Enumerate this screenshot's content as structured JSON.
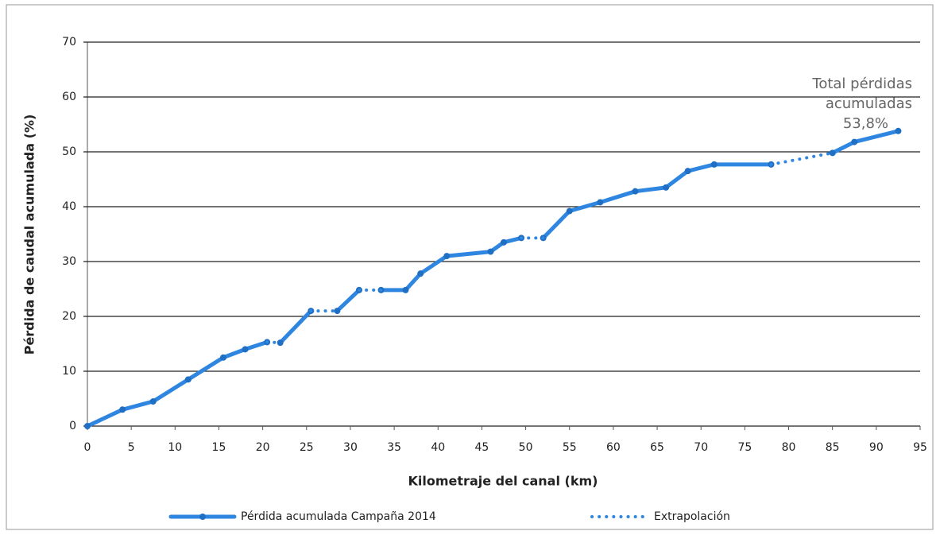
{
  "chart_data": {
    "type": "line",
    "xlabel": "Kilometraje del canal (km)",
    "ylabel": "Pérdida de caudal acumulada (%)",
    "xlim": [
      0,
      95
    ],
    "xticks": [
      0,
      5,
      10,
      15,
      20,
      25,
      30,
      35,
      40,
      45,
      50,
      55,
      60,
      65,
      70,
      75,
      80,
      85,
      90,
      95
    ],
    "ylim": [
      0,
      70
    ],
    "yticks": [
      0,
      10,
      20,
      30,
      40,
      50,
      60,
      70
    ],
    "grid": true,
    "legend": "bottom",
    "annotation": [
      "Total pérdidas",
      "acumuladas",
      "53,8%"
    ],
    "series": [
      {
        "name": "Pérdida acumulada Campaña 2014",
        "color": "#2f86e0",
        "style": "solid",
        "x": [
          0,
          4,
          7.5,
          11.5,
          15.5,
          18,
          20.5,
          null,
          22,
          25.5,
          null,
          28.5,
          31,
          null,
          33.5,
          36.3,
          38,
          41,
          46,
          47.5,
          49.5,
          null,
          52,
          55,
          58.5,
          62.5,
          66,
          68.5,
          71.5,
          78,
          null,
          85,
          87.5,
          92.5
        ],
        "values": [
          0,
          3,
          4.5,
          8.5,
          12.5,
          14,
          15.3,
          null,
          15.2,
          21,
          null,
          21,
          24.8,
          null,
          24.8,
          24.8,
          27.8,
          31,
          31.8,
          33.5,
          34.3,
          null,
          34.3,
          39.2,
          40.8,
          42.8,
          43.5,
          46.5,
          47.7,
          47.7,
          null,
          49.8,
          51.8,
          53.8
        ]
      },
      {
        "name": "Extrapolación",
        "color": "#2f86e0",
        "style": "dotted",
        "x": [
          20.5,
          22,
          null,
          25.5,
          28.5,
          null,
          31,
          33.5,
          null,
          49.5,
          52,
          null,
          78,
          85
        ],
        "values": [
          15.3,
          15.2,
          null,
          21,
          21,
          null,
          24.8,
          24.8,
          null,
          34.3,
          34.3,
          null,
          47.7,
          49.8
        ]
      }
    ]
  }
}
